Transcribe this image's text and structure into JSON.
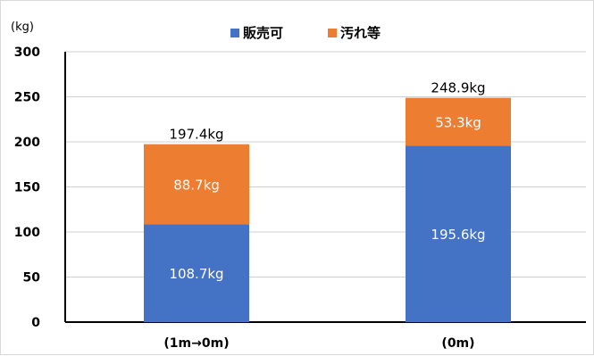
{
  "chart_data": {
    "type": "bar",
    "stacked": true,
    "unit_label": "(kg)",
    "categories": [
      "(1m→0m)",
      "(0m)"
    ],
    "series": [
      {
        "name": "販売可",
        "color": "#4472c4",
        "values": [
          108.7,
          195.6
        ],
        "labels": [
          "108.7kg",
          "195.6kg"
        ]
      },
      {
        "name": "汚れ等",
        "color": "#ed7d31",
        "values": [
          88.7,
          53.3
        ],
        "labels": [
          "88.7kg",
          "53.3kg"
        ]
      }
    ],
    "totals": [
      197.4,
      248.9
    ],
    "total_labels": [
      "197.4kg",
      "248.9kg"
    ],
    "yticks": [
      0,
      50,
      100,
      150,
      200,
      250,
      300
    ],
    "ylim": [
      0,
      300
    ],
    "legend_position": "top-center",
    "grid": true
  }
}
